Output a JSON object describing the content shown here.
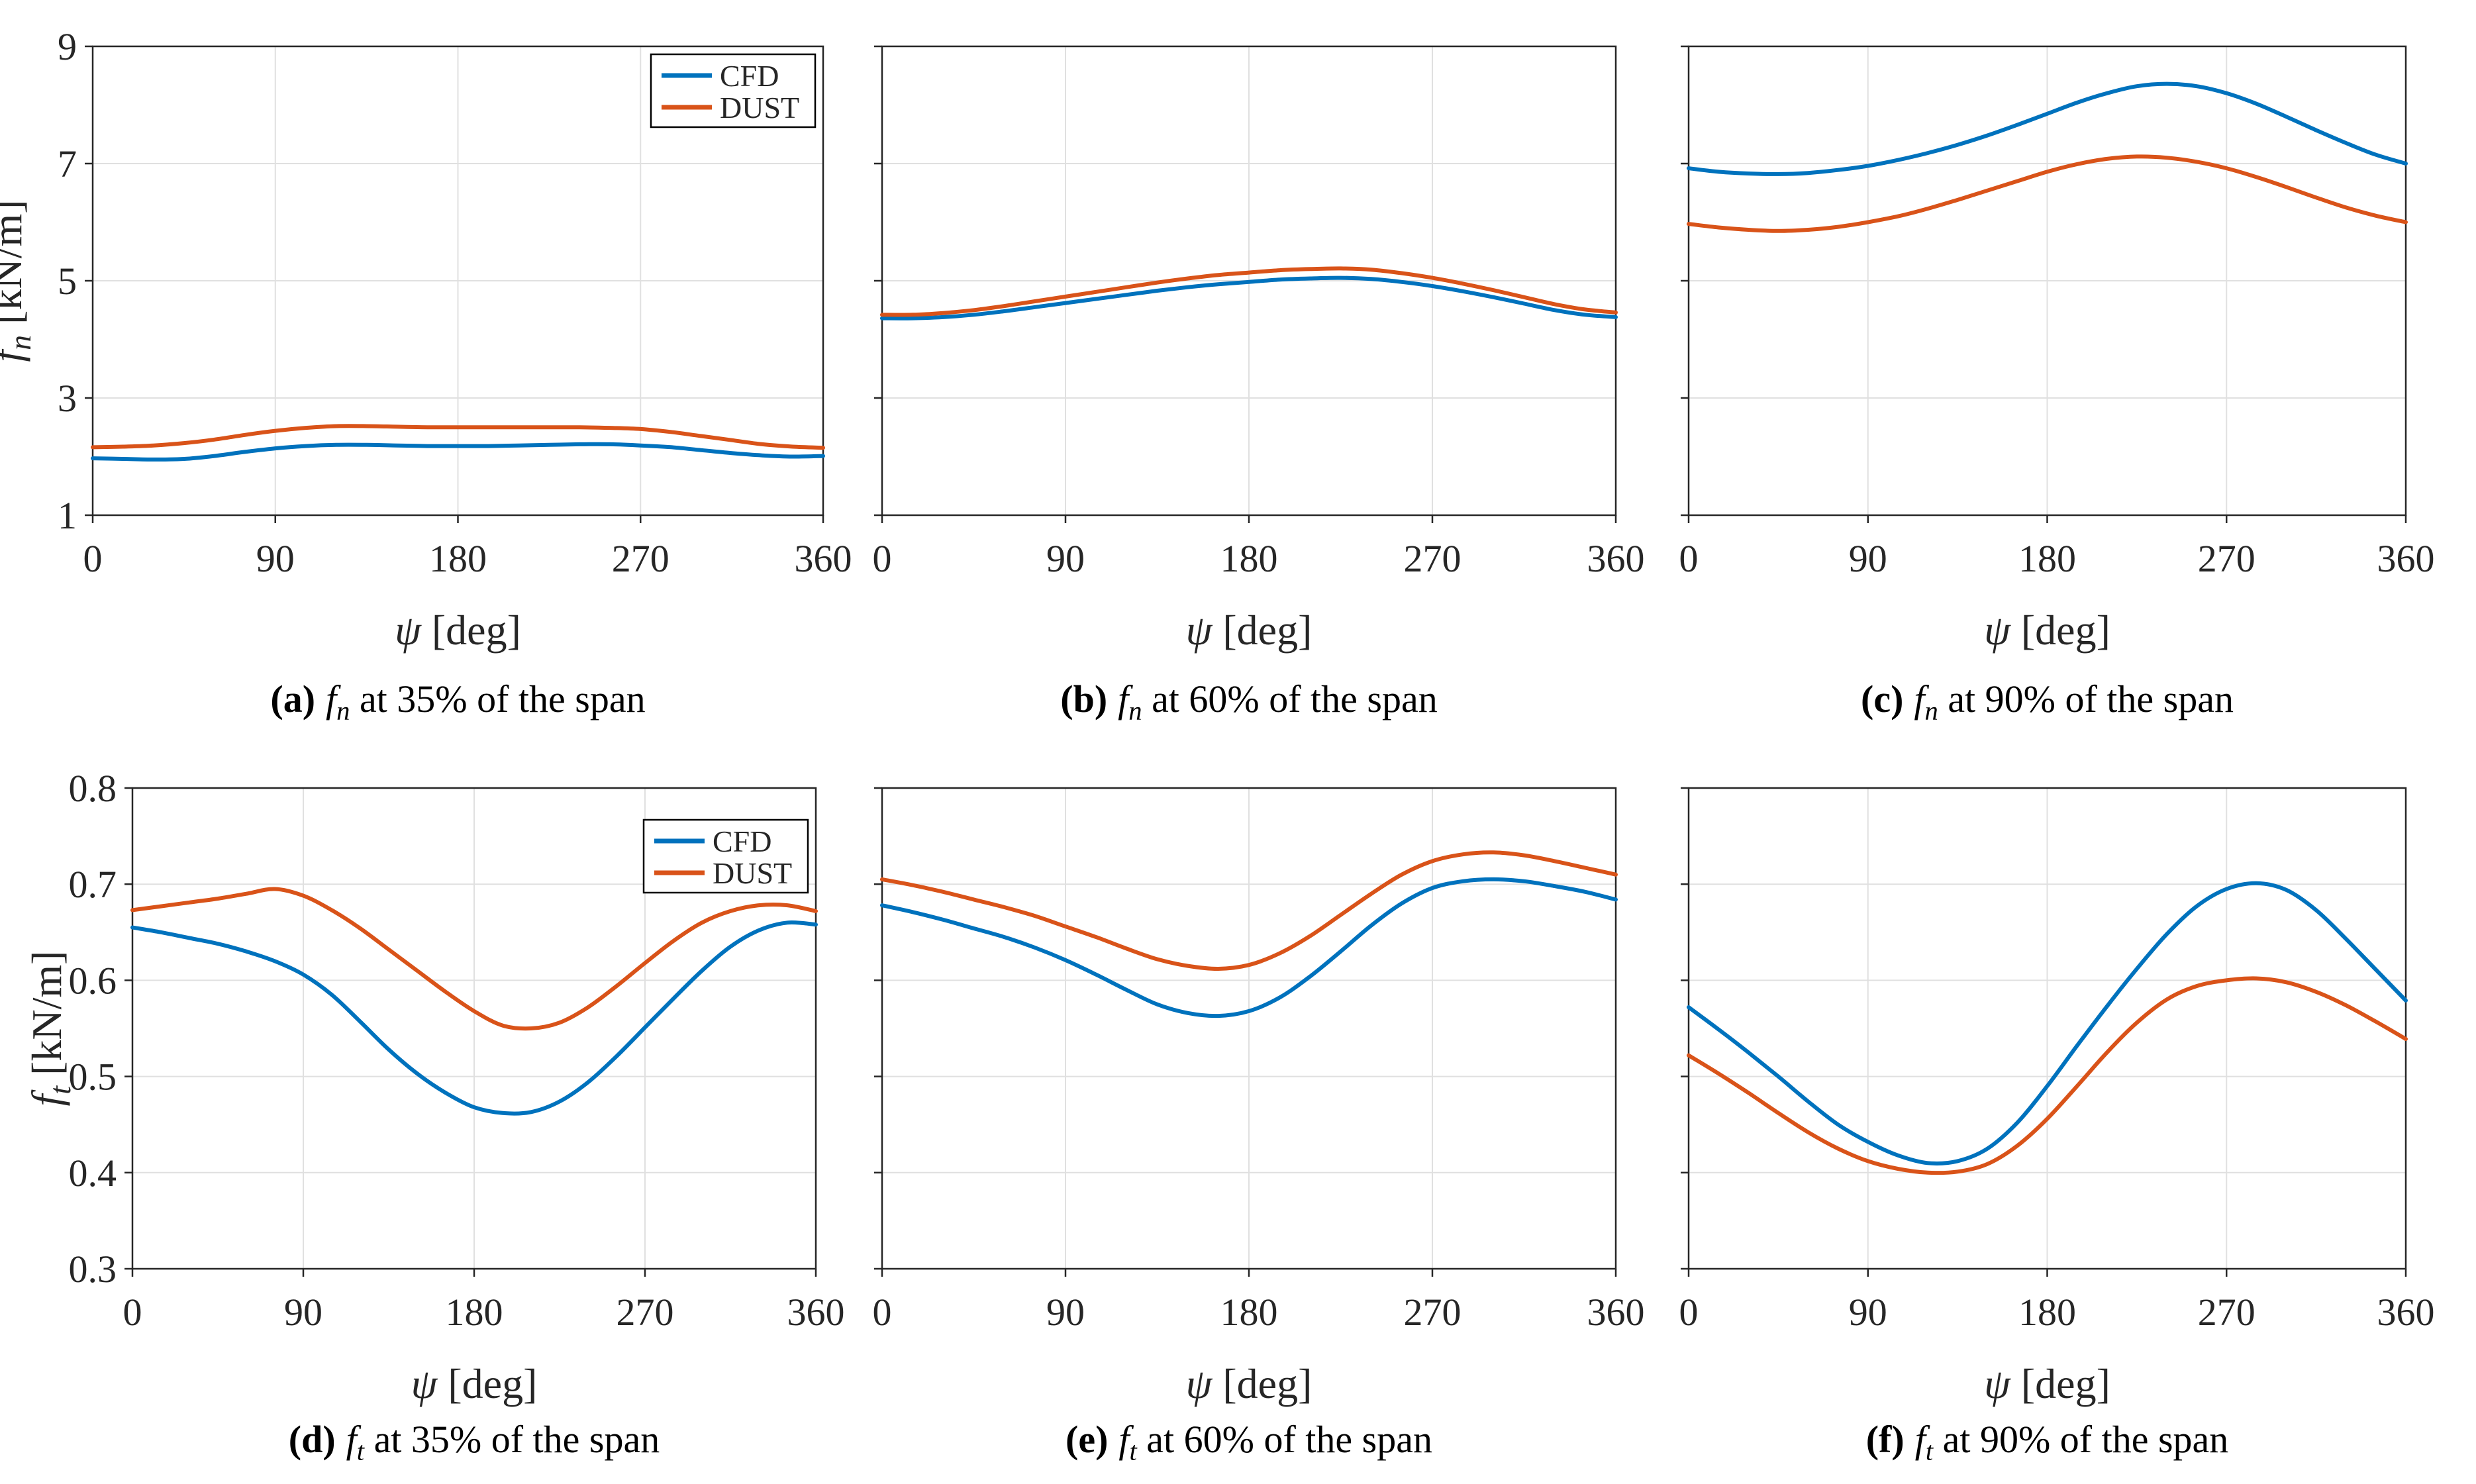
{
  "page": {
    "background": "#ffffff"
  },
  "colors": {
    "cfd": "#0072BD",
    "dust": "#D95319",
    "grid": "#E0E0E0",
    "axis": "#262626",
    "text": "#262626"
  },
  "legend": {
    "position": "top-right-inside",
    "entries": [
      {
        "id": "cfd",
        "label": "CFD",
        "color": "#0072BD"
      },
      {
        "id": "dust",
        "label": "DUST",
        "color": "#D95319"
      }
    ]
  },
  "axis_labels": {
    "x_symbol": "ψ",
    "x_unit": "[deg]",
    "y_unit": "[kN/m]"
  },
  "chart_data": [
    {
      "id": "a",
      "type": "line",
      "grid": true,
      "caption": {
        "label": "(a)",
        "symbol": "f",
        "sub": "n",
        "rest": " at 35% of the span"
      },
      "xlabel": {
        "symbol": "ψ",
        "unit": "[deg]"
      },
      "ylabel": {
        "symbol": "f",
        "sub": "n",
        "unit": "[kN/m]"
      },
      "xlim": [
        0,
        360
      ],
      "xticks": [
        0,
        90,
        180,
        270,
        360
      ],
      "ylim": [
        1,
        9
      ],
      "yticks": [
        1,
        3,
        5,
        7,
        9
      ],
      "ytick_labels_visible": true,
      "legend_visible": true,
      "x": [
        0,
        15,
        30,
        45,
        60,
        75,
        90,
        105,
        120,
        135,
        150,
        165,
        180,
        195,
        210,
        225,
        240,
        255,
        270,
        285,
        300,
        315,
        330,
        345,
        360
      ],
      "series": [
        {
          "name": "CFD",
          "values": [
            1.97,
            1.96,
            1.95,
            1.96,
            2.01,
            2.08,
            2.14,
            2.18,
            2.2,
            2.2,
            2.19,
            2.18,
            2.18,
            2.18,
            2.19,
            2.2,
            2.21,
            2.21,
            2.19,
            2.16,
            2.11,
            2.06,
            2.02,
            2.0,
            2.01
          ]
        },
        {
          "name": "DUST",
          "values": [
            2.16,
            2.17,
            2.19,
            2.23,
            2.29,
            2.37,
            2.44,
            2.49,
            2.52,
            2.52,
            2.51,
            2.5,
            2.5,
            2.5,
            2.5,
            2.5,
            2.5,
            2.49,
            2.47,
            2.42,
            2.35,
            2.28,
            2.21,
            2.17,
            2.15
          ]
        }
      ]
    },
    {
      "id": "b",
      "type": "line",
      "grid": true,
      "caption": {
        "label": "(b)",
        "symbol": "f",
        "sub": "n",
        "rest": " at 60% of the span"
      },
      "xlabel": {
        "symbol": "ψ",
        "unit": "[deg]"
      },
      "ylabel": null,
      "xlim": [
        0,
        360
      ],
      "xticks": [
        0,
        90,
        180,
        270,
        360
      ],
      "ylim": [
        1,
        9
      ],
      "yticks": [
        1,
        3,
        5,
        7,
        9
      ],
      "ytick_labels_visible": false,
      "legend_visible": false,
      "x": [
        0,
        15,
        30,
        45,
        60,
        75,
        90,
        105,
        120,
        135,
        150,
        165,
        180,
        195,
        210,
        225,
        240,
        255,
        270,
        285,
        300,
        315,
        330,
        345,
        360
      ],
      "series": [
        {
          "name": "CFD",
          "values": [
            4.36,
            4.36,
            4.38,
            4.42,
            4.48,
            4.55,
            4.62,
            4.69,
            4.76,
            4.83,
            4.89,
            4.94,
            4.98,
            5.02,
            5.04,
            5.05,
            5.03,
            4.98,
            4.91,
            4.82,
            4.72,
            4.61,
            4.5,
            4.42,
            4.38
          ]
        },
        {
          "name": "DUST",
          "values": [
            4.42,
            4.42,
            4.45,
            4.5,
            4.57,
            4.65,
            4.73,
            4.81,
            4.89,
            4.97,
            5.04,
            5.1,
            5.14,
            5.18,
            5.2,
            5.21,
            5.19,
            5.13,
            5.05,
            4.95,
            4.84,
            4.72,
            4.6,
            4.51,
            4.46
          ]
        }
      ]
    },
    {
      "id": "c",
      "type": "line",
      "grid": true,
      "caption": {
        "label": "(c)",
        "symbol": "f",
        "sub": "n",
        "rest": " at 90% of the span"
      },
      "xlabel": {
        "symbol": "ψ",
        "unit": "[deg]"
      },
      "ylabel": null,
      "xlim": [
        0,
        360
      ],
      "xticks": [
        0,
        90,
        180,
        270,
        360
      ],
      "ylim": [
        1,
        9
      ],
      "yticks": [
        1,
        3,
        5,
        7,
        9
      ],
      "ytick_labels_visible": false,
      "legend_visible": false,
      "x": [
        0,
        15,
        30,
        45,
        60,
        75,
        90,
        105,
        120,
        135,
        150,
        165,
        180,
        195,
        210,
        225,
        240,
        255,
        270,
        285,
        300,
        315,
        330,
        345,
        360
      ],
      "series": [
        {
          "name": "CFD",
          "values": [
            6.92,
            6.86,
            6.83,
            6.82,
            6.84,
            6.89,
            6.96,
            7.06,
            7.18,
            7.32,
            7.48,
            7.66,
            7.85,
            8.04,
            8.2,
            8.32,
            8.36,
            8.32,
            8.2,
            8.02,
            7.8,
            7.57,
            7.35,
            7.15,
            7.0
          ]
        },
        {
          "name": "DUST",
          "values": [
            5.97,
            5.91,
            5.87,
            5.85,
            5.87,
            5.92,
            6.0,
            6.1,
            6.23,
            6.38,
            6.54,
            6.7,
            6.86,
            6.99,
            7.08,
            7.12,
            7.1,
            7.03,
            6.92,
            6.77,
            6.6,
            6.42,
            6.25,
            6.11,
            6.0
          ]
        }
      ]
    },
    {
      "id": "d",
      "type": "line",
      "grid": true,
      "caption": {
        "label": "(d)",
        "symbol": "f",
        "sub": "t",
        "rest": " at 35% of the span"
      },
      "xlabel": {
        "symbol": "ψ",
        "unit": "[deg]"
      },
      "ylabel": {
        "symbol": "f",
        "sub": "t",
        "unit": "[kN/m]"
      },
      "xlim": [
        0,
        360
      ],
      "xticks": [
        0,
        90,
        180,
        270,
        360
      ],
      "ylim": [
        0.3,
        0.8
      ],
      "yticks": [
        0.3,
        0.4,
        0.5,
        0.6,
        0.7,
        0.8
      ],
      "ytick_labels_visible": true,
      "legend_visible": true,
      "x": [
        0,
        15,
        30,
        45,
        60,
        75,
        90,
        105,
        120,
        135,
        150,
        165,
        180,
        195,
        210,
        225,
        240,
        255,
        270,
        285,
        300,
        315,
        330,
        345,
        360
      ],
      "series": [
        {
          "name": "CFD",
          "values": [
            0.655,
            0.65,
            0.644,
            0.638,
            0.63,
            0.62,
            0.606,
            0.585,
            0.557,
            0.528,
            0.503,
            0.483,
            0.468,
            0.462,
            0.463,
            0.474,
            0.494,
            0.521,
            0.551,
            0.581,
            0.61,
            0.635,
            0.652,
            0.66,
            0.658
          ]
        },
        {
          "name": "DUST",
          "values": [
            0.673,
            0.677,
            0.681,
            0.685,
            0.69,
            0.695,
            0.688,
            0.673,
            0.654,
            0.632,
            0.61,
            0.588,
            0.568,
            0.553,
            0.55,
            0.556,
            0.572,
            0.594,
            0.618,
            0.641,
            0.66,
            0.672,
            0.678,
            0.678,
            0.672
          ]
        }
      ]
    },
    {
      "id": "e",
      "type": "line",
      "grid": true,
      "caption": {
        "label": "(e)",
        "symbol": "f",
        "sub": "t",
        "rest": " at 60% of the span"
      },
      "xlabel": {
        "symbol": "ψ",
        "unit": "[deg]"
      },
      "ylabel": null,
      "xlim": [
        0,
        360
      ],
      "xticks": [
        0,
        90,
        180,
        270,
        360
      ],
      "ylim": [
        0.3,
        0.8
      ],
      "yticks": [
        0.3,
        0.4,
        0.5,
        0.6,
        0.7,
        0.8
      ],
      "ytick_labels_visible": false,
      "legend_visible": false,
      "x": [
        0,
        15,
        30,
        45,
        60,
        75,
        90,
        105,
        120,
        135,
        150,
        165,
        180,
        195,
        210,
        225,
        240,
        255,
        270,
        285,
        300,
        315,
        330,
        345,
        360
      ],
      "series": [
        {
          "name": "CFD",
          "values": [
            0.678,
            0.671,
            0.663,
            0.654,
            0.645,
            0.634,
            0.621,
            0.606,
            0.59,
            0.575,
            0.566,
            0.563,
            0.568,
            0.582,
            0.604,
            0.63,
            0.657,
            0.68,
            0.696,
            0.703,
            0.705,
            0.703,
            0.698,
            0.692,
            0.684
          ]
        },
        {
          "name": "DUST",
          "values": [
            0.705,
            0.699,
            0.692,
            0.684,
            0.676,
            0.667,
            0.656,
            0.645,
            0.633,
            0.622,
            0.615,
            0.612,
            0.616,
            0.628,
            0.646,
            0.668,
            0.69,
            0.71,
            0.724,
            0.731,
            0.733,
            0.73,
            0.724,
            0.717,
            0.71
          ]
        }
      ]
    },
    {
      "id": "f",
      "type": "line",
      "grid": true,
      "caption": {
        "label": "(f)",
        "symbol": "f",
        "sub": "t",
        "rest": " at 90% of the span"
      },
      "xlabel": {
        "symbol": "ψ",
        "unit": "[deg]"
      },
      "ylabel": null,
      "xlim": [
        0,
        360
      ],
      "xticks": [
        0,
        90,
        180,
        270,
        360
      ],
      "ylim": [
        0.3,
        0.8
      ],
      "yticks": [
        0.3,
        0.4,
        0.5,
        0.6,
        0.7,
        0.8
      ],
      "ytick_labels_visible": false,
      "legend_visible": false,
      "x": [
        0,
        15,
        30,
        45,
        60,
        75,
        90,
        105,
        120,
        135,
        150,
        165,
        180,
        195,
        210,
        225,
        240,
        255,
        270,
        285,
        300,
        315,
        330,
        345,
        360
      ],
      "series": [
        {
          "name": "CFD",
          "values": [
            0.572,
            0.549,
            0.525,
            0.5,
            0.474,
            0.45,
            0.432,
            0.418,
            0.41,
            0.412,
            0.425,
            0.452,
            0.49,
            0.532,
            0.573,
            0.612,
            0.648,
            0.677,
            0.695,
            0.701,
            0.694,
            0.673,
            0.643,
            0.611,
            0.579
          ]
        },
        {
          "name": "DUST",
          "values": [
            0.522,
            0.503,
            0.483,
            0.462,
            0.442,
            0.425,
            0.412,
            0.404,
            0.4,
            0.401,
            0.409,
            0.428,
            0.456,
            0.49,
            0.525,
            0.556,
            0.58,
            0.594,
            0.6,
            0.602,
            0.598,
            0.588,
            0.574,
            0.557,
            0.539
          ]
        }
      ]
    }
  ]
}
